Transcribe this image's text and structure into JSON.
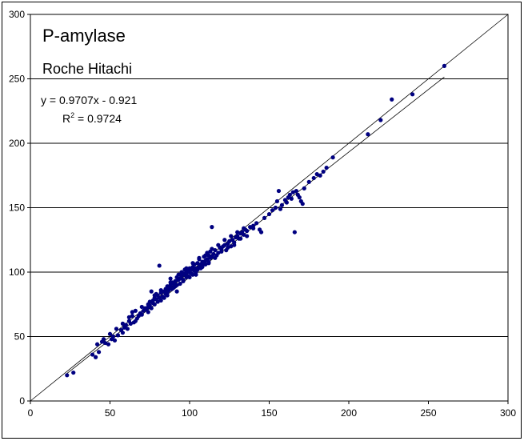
{
  "chart_data": {
    "type": "scatter",
    "title": "P-amylase",
    "subtitle": "Roche Hitachi",
    "equation": "y = 0.9707x - 0.921",
    "r2_prefix": "R",
    "r2_sup": "2",
    "r2_value": " = 0.9724",
    "xlim": [
      0,
      300
    ],
    "ylim": [
      0,
      300
    ],
    "x_ticks": [
      "0",
      "50",
      "100",
      "150",
      "200",
      "250",
      "300"
    ],
    "y_ticks": [
      "0",
      "50",
      "100",
      "150",
      "200",
      "250",
      "300"
    ],
    "grid": "horizontal",
    "identity_line": {
      "slope": 1,
      "intercept": 0
    },
    "regression_line": {
      "slope": 0.9707,
      "intercept": -0.921
    },
    "point_color": "#000080",
    "series": [
      {
        "points": [
          [
            23,
            20
          ],
          [
            27,
            22
          ],
          [
            39,
            36
          ],
          [
            41,
            34
          ],
          [
            43,
            38
          ],
          [
            45,
            46
          ],
          [
            47,
            45
          ],
          [
            49,
            44
          ],
          [
            51,
            48
          ],
          [
            52,
            50
          ],
          [
            53,
            47
          ],
          [
            55,
            51
          ],
          [
            57,
            55
          ],
          [
            58,
            53
          ],
          [
            59,
            57
          ],
          [
            60,
            59
          ],
          [
            61,
            56
          ],
          [
            62,
            62
          ],
          [
            63,
            60
          ],
          [
            64,
            66
          ],
          [
            64,
            69
          ],
          [
            65,
            61
          ],
          [
            66,
            62
          ],
          [
            67,
            64
          ],
          [
            68,
            66
          ],
          [
            69,
            68
          ],
          [
            70,
            67
          ],
          [
            71,
            70
          ],
          [
            72,
            72
          ],
          [
            73,
            71
          ],
          [
            74,
            73
          ],
          [
            74,
            69
          ],
          [
            75,
            74
          ],
          [
            75,
            77
          ],
          [
            76,
            72
          ],
          [
            76,
            85
          ],
          [
            77,
            76
          ],
          [
            77,
            78
          ],
          [
            78,
            75
          ],
          [
            78,
            80
          ],
          [
            79,
            79
          ],
          [
            79,
            83
          ],
          [
            80,
            77
          ],
          [
            80,
            82
          ],
          [
            81,
            80
          ],
          [
            81,
            105
          ],
          [
            82,
            84
          ],
          [
            82,
            78
          ],
          [
            83,
            81
          ],
          [
            84,
            85
          ],
          [
            84,
            80
          ],
          [
            85,
            87
          ],
          [
            85,
            83
          ],
          [
            86,
            84
          ],
          [
            86,
            89
          ],
          [
            87,
            88
          ],
          [
            87,
            86
          ],
          [
            88,
            90
          ],
          [
            88,
            95
          ],
          [
            89,
            87
          ],
          [
            89,
            92
          ],
          [
            90,
            91
          ],
          [
            90,
            88
          ],
          [
            91,
            89
          ],
          [
            91,
            93
          ],
          [
            92,
            96
          ],
          [
            92,
            85
          ],
          [
            93,
            94
          ],
          [
            93,
            98
          ],
          [
            94,
            95
          ],
          [
            94,
            91
          ],
          [
            95,
            97
          ],
          [
            95,
            100
          ],
          [
            96,
            94
          ],
          [
            96,
            99
          ],
          [
            97,
            98
          ],
          [
            97,
            102
          ],
          [
            98,
            96
          ],
          [
            98,
            100
          ],
          [
            99,
            101
          ],
          [
            99,
            97
          ],
          [
            100,
            100
          ],
          [
            100,
            103
          ],
          [
            101,
            99
          ],
          [
            101,
            102
          ],
          [
            102,
            104
          ],
          [
            102,
            98
          ],
          [
            103,
            101
          ],
          [
            103,
            106
          ],
          [
            104,
            103
          ],
          [
            104,
            100
          ],
          [
            105,
            107
          ],
          [
            105,
            102
          ],
          [
            106,
            104
          ],
          [
            106,
            110
          ],
          [
            107,
            106
          ],
          [
            107,
            103
          ],
          [
            108,
            108
          ],
          [
            108,
            105
          ],
          [
            109,
            107
          ],
          [
            109,
            112
          ],
          [
            110,
            109
          ],
          [
            110,
            106
          ],
          [
            111,
            110
          ],
          [
            111,
            115
          ],
          [
            112,
            108
          ],
          [
            112,
            113
          ],
          [
            113,
            111
          ],
          [
            113,
            116
          ],
          [
            114,
            135
          ],
          [
            114,
            112
          ],
          [
            115,
            114
          ],
          [
            116,
            117
          ],
          [
            117,
            113
          ],
          [
            118,
            115
          ],
          [
            119,
            119
          ],
          [
            120,
            118
          ],
          [
            121,
            120
          ],
          [
            122,
            121
          ],
          [
            123,
            117
          ],
          [
            124,
            122
          ],
          [
            125,
            124
          ],
          [
            126,
            120
          ],
          [
            127,
            125
          ],
          [
            128,
            123
          ],
          [
            129,
            127
          ],
          [
            130,
            128
          ],
          [
            131,
            126
          ],
          [
            132,
            130
          ],
          [
            133,
            131
          ],
          [
            134,
            129
          ],
          [
            135,
            133
          ],
          [
            136,
            132
          ],
          [
            138,
            135
          ],
          [
            140,
            136
          ],
          [
            142,
            138
          ],
          [
            144,
            133
          ],
          [
            145,
            131
          ],
          [
            147,
            142
          ],
          [
            150,
            145
          ],
          [
            152,
            148
          ],
          [
            154,
            150
          ],
          [
            155,
            155
          ],
          [
            156,
            163
          ],
          [
            157,
            149
          ],
          [
            158,
            152
          ],
          [
            160,
            156
          ],
          [
            161,
            154
          ],
          [
            162,
            158
          ],
          [
            163,
            160
          ],
          [
            164,
            157
          ],
          [
            165,
            162
          ],
          [
            166,
            131
          ],
          [
            167,
            163
          ],
          [
            168,
            160
          ],
          [
            169,
            158
          ],
          [
            170,
            155
          ],
          [
            171,
            153
          ],
          [
            172,
            165
          ],
          [
            175,
            170
          ],
          [
            178,
            173
          ],
          [
            180,
            176
          ],
          [
            182,
            175
          ],
          [
            184,
            178
          ],
          [
            186,
            181
          ],
          [
            190,
            189
          ],
          [
            212,
            207
          ],
          [
            220,
            218
          ],
          [
            227,
            234
          ],
          [
            240,
            238
          ],
          [
            260,
            260
          ],
          [
            74,
            75
          ],
          [
            86,
            82
          ],
          [
            92,
            90
          ],
          [
            96,
            93
          ],
          [
            100,
            96
          ],
          [
            104,
            98
          ],
          [
            108,
            104
          ],
          [
            112,
            107
          ],
          [
            116,
            111
          ],
          [
            120,
            116
          ],
          [
            124,
            119
          ],
          [
            128,
            121
          ],
          [
            132,
            126
          ],
          [
            136,
            128
          ],
          [
            140,
            134
          ],
          [
            78,
            82
          ],
          [
            82,
            86
          ],
          [
            88,
            92
          ],
          [
            94,
            98
          ],
          [
            98,
            103
          ],
          [
            102,
            107
          ],
          [
            106,
            111
          ],
          [
            110,
            113
          ],
          [
            114,
            118
          ],
          [
            118,
            121
          ],
          [
            122,
            125
          ],
          [
            126,
            128
          ],
          [
            130,
            131
          ],
          [
            134,
            134
          ],
          [
            70,
            73
          ],
          [
            66,
            70
          ],
          [
            62,
            65
          ],
          [
            58,
            60
          ],
          [
            54,
            56
          ],
          [
            50,
            52
          ],
          [
            46,
            48
          ],
          [
            42,
            44
          ]
        ]
      }
    ]
  }
}
